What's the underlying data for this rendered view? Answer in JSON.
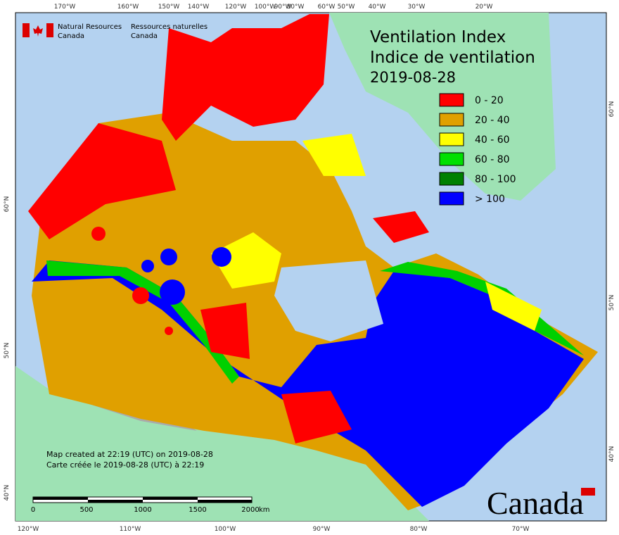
{
  "header": {
    "org_en": "Natural Resources",
    "org_en_2": "Canada",
    "org_fr": "Ressources naturelles",
    "org_fr_2": "Canada"
  },
  "title": [
    "Ventilation Index",
    "Indice de ventilation",
    "2019-08-28"
  ],
  "legend": [
    {
      "label": "0 - 20",
      "color": "#ff0000"
    },
    {
      "label": "20 - 40",
      "color": "#e0a000"
    },
    {
      "label": "40 - 60",
      "color": "#ffff00"
    },
    {
      "label": "60 - 80",
      "color": "#00e000"
    },
    {
      "label": "80 - 100",
      "color": "#008000"
    },
    {
      "label": "> 100",
      "color": "#0000ff"
    }
  ],
  "top_labels": [
    "170°W",
    "160°W",
    "150°W",
    "140°W",
    "120°W",
    "100°W",
    "90°W",
    "80°W",
    "60°W",
    "50°W",
    "40°W",
    "30°W",
    "20°W"
  ],
  "bottom_labels": [
    "120°W",
    "110°W",
    "100°W",
    "90°W",
    "80°W",
    "70°W"
  ],
  "left_labels": [
    "60°N",
    "50°N",
    "40°N"
  ],
  "right_labels": [
    "60°N",
    "50°N",
    "40°N"
  ],
  "scale": {
    "ticks": [
      "0",
      "500",
      "1000",
      "1500",
      "2000"
    ],
    "unit": "km"
  },
  "credits": [
    "Map created at 22:19 (UTC) on 2019-08-28",
    "Carte créée le 2019-08-28 (UTC) à 22:19"
  ],
  "wordmark": "Canada"
}
